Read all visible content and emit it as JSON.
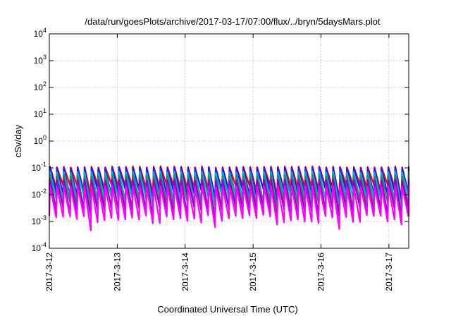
{
  "chart_data": {
    "type": "line",
    "title": "/data/run/goesPlots/archive/2017-03-17/07:00/flux/../bryn/5daysMars.plot",
    "xlabel": "Coordinated Universal Time (UTC)",
    "ylabel": "cSv/day",
    "y_scale": "log",
    "ylim": [
      0.0001,
      10000
    ],
    "y_ticks": [
      {
        "base": "10",
        "exp": "-4"
      },
      {
        "base": "10",
        "exp": "-3"
      },
      {
        "base": "10",
        "exp": "-2"
      },
      {
        "base": "10",
        "exp": "-1"
      },
      {
        "base": "10",
        "exp": "0"
      },
      {
        "base": "10",
        "exp": "1"
      },
      {
        "base": "10",
        "exp": "2"
      },
      {
        "base": "10",
        "exp": "3"
      },
      {
        "base": "10",
        "exp": "4"
      }
    ],
    "x_ticks": [
      "2017-3-12",
      "2017-3-13",
      "2017-3-14",
      "2017-3-15",
      "2017-3-16",
      "2017-3-17"
    ],
    "xlim": [
      "2017-03-12T00:00",
      "2017-03-17T07:00"
    ],
    "grid": true,
    "legend": "none",
    "cycle_hours": 2.44,
    "series": [
      {
        "color": "#ff0000",
        "peak": 0.11,
        "trough": 0.018
      },
      {
        "color": "#1a1aff",
        "peak": 0.1,
        "trough": 0.012
      },
      {
        "color": "#00b0c0",
        "peak": 0.07,
        "trough": 0.007
      },
      {
        "color": "#2e8b57",
        "peak": 0.05,
        "trough": 0.004
      },
      {
        "color": "#9400d3",
        "peak": 0.035,
        "trough": 0.0025
      },
      {
        "color": "#ff00ff",
        "peak": 0.02,
        "trough": 0.0013
      }
    ]
  }
}
